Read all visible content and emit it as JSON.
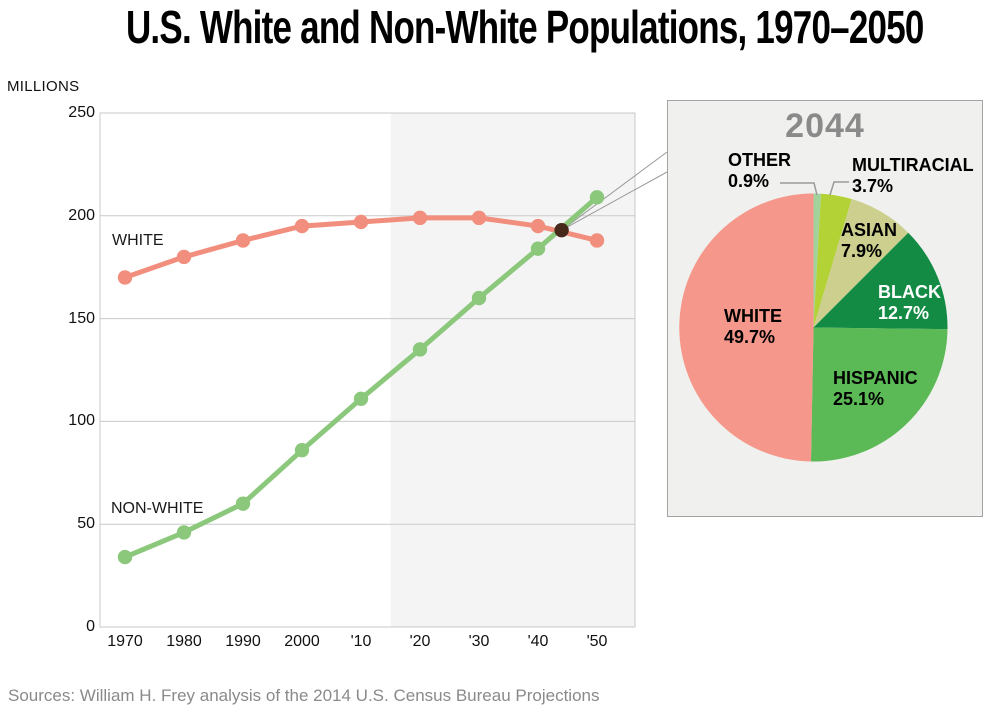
{
  "page": {
    "title": "U.S. White and Non-White Populations, 1970–2050",
    "source": "Sources: William H. Frey analysis of the 2014 U.S. Census Bureau Projections"
  },
  "colors": {
    "white_series": "#F28E7D",
    "nonwhite_series": "#8BC87C",
    "crossing_dot": "#46291B",
    "forecast_shade": "#F4F4F4",
    "grid": "#C9C9C9",
    "callout": "#9A9A9A",
    "inset_bg": "#F0F0EE",
    "inset_border": "#A3A3A3",
    "pie_title_gray": "#8A8A8A"
  },
  "chart_data": [
    {
      "type": "line",
      "title": "U.S. White and Non-White Populations, 1970–2050",
      "ylabel": "MILLIONS",
      "x": [
        1970,
        1980,
        1990,
        2000,
        2010,
        2020,
        2030,
        2040,
        2050
      ],
      "x_tick_labels": [
        "1970",
        "1980",
        "1990",
        "2000",
        "'10",
        "'20",
        "'30",
        "'40",
        "'50"
      ],
      "y_ticks": [
        250,
        200,
        150,
        100,
        50,
        0
      ],
      "ylim": [
        0,
        250
      ],
      "grid": true,
      "projection_shade_start": 2015,
      "series": [
        {
          "name": "WHITE",
          "color": "#F28E7D",
          "values": [
            170,
            180,
            188,
            195,
            197,
            199,
            199,
            195,
            188
          ]
        },
        {
          "name": "NON-WHITE",
          "color": "#8BC87C",
          "values": [
            34,
            46,
            60,
            86,
            111,
            135,
            160,
            184,
            209
          ]
        }
      ],
      "crossing_point": {
        "year": 2044,
        "value": 193
      }
    },
    {
      "type": "pie",
      "title": "2044",
      "start_angle_deg": 0,
      "direction": "clockwise",
      "slices": [
        {
          "label": "OTHER",
          "pct": 0.9,
          "pct_label": "0.9%",
          "color": "#A3D39C"
        },
        {
          "label": "MULTIRACIAL",
          "pct": 3.7,
          "pct_label": "3.7%",
          "color": "#B2D235"
        },
        {
          "label": "ASIAN",
          "pct": 7.9,
          "pct_label": "7.9%",
          "color": "#CCCF8D"
        },
        {
          "label": "BLACK",
          "pct": 12.7,
          "pct_label": "12.7%",
          "color": "#148B45"
        },
        {
          "label": "HISPANIC",
          "pct": 25.1,
          "pct_label": "25.1%",
          "color": "#5BB956"
        },
        {
          "label": "WHITE",
          "pct": 49.7,
          "pct_label": "49.7%",
          "color": "#F5978A"
        }
      ]
    }
  ]
}
